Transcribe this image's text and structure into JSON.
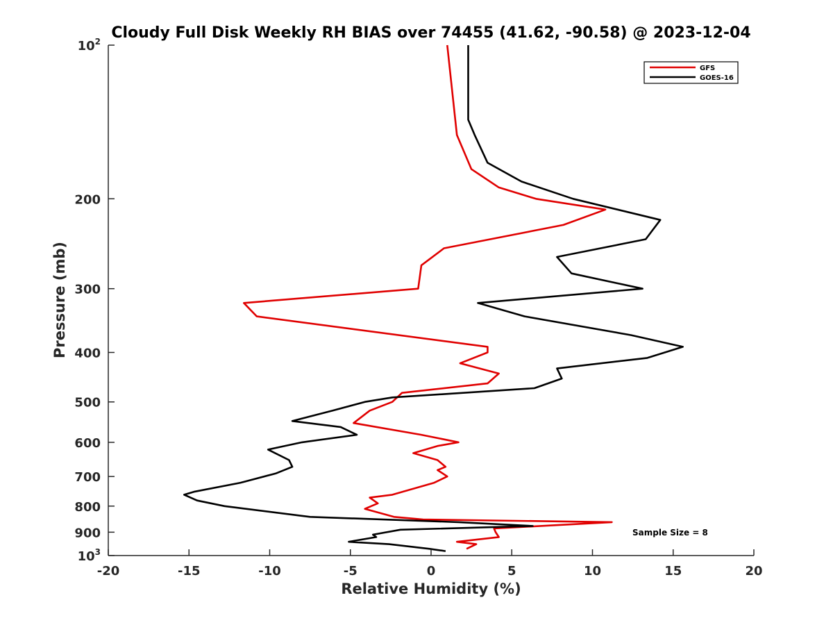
{
  "chart_data": {
    "type": "line",
    "title": "Cloudy Full Disk Weekly RH BIAS over 74455 (41.62, -90.58) @ 2023-12-04",
    "xlabel": "Relative Humidity (%)",
    "ylabel": "Pressure (mb)",
    "xlim": [
      -20,
      20
    ],
    "ylim": [
      100,
      1000
    ],
    "y_scale": "log",
    "y_reversed": true,
    "x_ticks": [
      "-20",
      "-15",
      "-10",
      "-5",
      "0",
      "5",
      "10",
      "15",
      "20"
    ],
    "y_ticks": [
      {
        "value": 100,
        "base": "10",
        "exp": "2"
      },
      {
        "value": 200,
        "label": "200"
      },
      {
        "value": 300,
        "label": "300"
      },
      {
        "value": 400,
        "label": "400"
      },
      {
        "value": 500,
        "label": "500"
      },
      {
        "value": 600,
        "label": "600"
      },
      {
        "value": 700,
        "label": "700"
      },
      {
        "value": 800,
        "label": "800"
      },
      {
        "value": 900,
        "label": "900"
      },
      {
        "value": 1000,
        "base": "10",
        "exp": "3"
      }
    ],
    "grid": false,
    "legend_position": "top-right",
    "annotation": "Sample Size = 8",
    "series": [
      {
        "name": "GFS",
        "color": "#e00000",
        "points": [
          [
            1.0,
            100
          ],
          [
            1.6,
            150
          ],
          [
            2.5,
            175
          ],
          [
            4.2,
            190
          ],
          [
            6.5,
            200
          ],
          [
            10.8,
            210
          ],
          [
            8.2,
            225
          ],
          [
            0.8,
            250
          ],
          [
            -0.6,
            270
          ],
          [
            -0.8,
            300
          ],
          [
            -11.6,
            320
          ],
          [
            -10.8,
            340
          ],
          [
            3.5,
            390
          ],
          [
            3.5,
            400
          ],
          [
            1.8,
            420
          ],
          [
            4.2,
            440
          ],
          [
            3.5,
            460
          ],
          [
            -1.8,
            480
          ],
          [
            -2.4,
            500
          ],
          [
            -3.8,
            520
          ],
          [
            -4.8,
            550
          ],
          [
            -0.6,
            580
          ],
          [
            1.7,
            600
          ],
          [
            0.4,
            610
          ],
          [
            -1.1,
            630
          ],
          [
            0.4,
            650
          ],
          [
            0.9,
            670
          ],
          [
            0.4,
            680
          ],
          [
            1.0,
            700
          ],
          [
            0.2,
            720
          ],
          [
            -2.4,
            760
          ],
          [
            -3.8,
            770
          ],
          [
            -3.3,
            790
          ],
          [
            -4.1,
            810
          ],
          [
            -2.3,
            840
          ],
          [
            -0.5,
            850
          ],
          [
            11.2,
            860
          ],
          [
            3.9,
            885
          ],
          [
            4.0,
            900
          ],
          [
            4.2,
            920
          ],
          [
            1.6,
            940
          ],
          [
            2.8,
            950
          ],
          [
            2.2,
            970
          ]
        ]
      },
      {
        "name": "GOES-16",
        "color": "#000000",
        "points": [
          [
            2.3,
            100
          ],
          [
            2.3,
            140
          ],
          [
            2.7,
            150
          ],
          [
            3.5,
            170
          ],
          [
            5.6,
            185
          ],
          [
            8.8,
            200
          ],
          [
            14.2,
            220
          ],
          [
            13.3,
            240
          ],
          [
            7.8,
            260
          ],
          [
            8.7,
            280
          ],
          [
            13.1,
            300
          ],
          [
            2.9,
            320
          ],
          [
            5.8,
            340
          ],
          [
            12.4,
            370
          ],
          [
            15.6,
            390
          ],
          [
            13.4,
            410
          ],
          [
            7.8,
            430
          ],
          [
            8.1,
            450
          ],
          [
            6.4,
            470
          ],
          [
            -2.4,
            490
          ],
          [
            -4.1,
            500
          ],
          [
            -6.1,
            520
          ],
          [
            -8.6,
            545
          ],
          [
            -5.6,
            560
          ],
          [
            -4.6,
            580
          ],
          [
            -8.0,
            600
          ],
          [
            -10.1,
            620
          ],
          [
            -8.8,
            650
          ],
          [
            -8.6,
            670
          ],
          [
            -9.6,
            690
          ],
          [
            -11.8,
            720
          ],
          [
            -14.7,
            750
          ],
          [
            -15.3,
            760
          ],
          [
            -14.5,
            780
          ],
          [
            -12.8,
            800
          ],
          [
            -7.5,
            840
          ],
          [
            1.7,
            860
          ],
          [
            6.3,
            875
          ],
          [
            -1.9,
            890
          ],
          [
            -3.6,
            910
          ],
          [
            -3.4,
            920
          ],
          [
            -5.1,
            940
          ],
          [
            -2.6,
            950
          ],
          [
            -0.1,
            970
          ],
          [
            0.9,
            980
          ]
        ]
      }
    ]
  }
}
